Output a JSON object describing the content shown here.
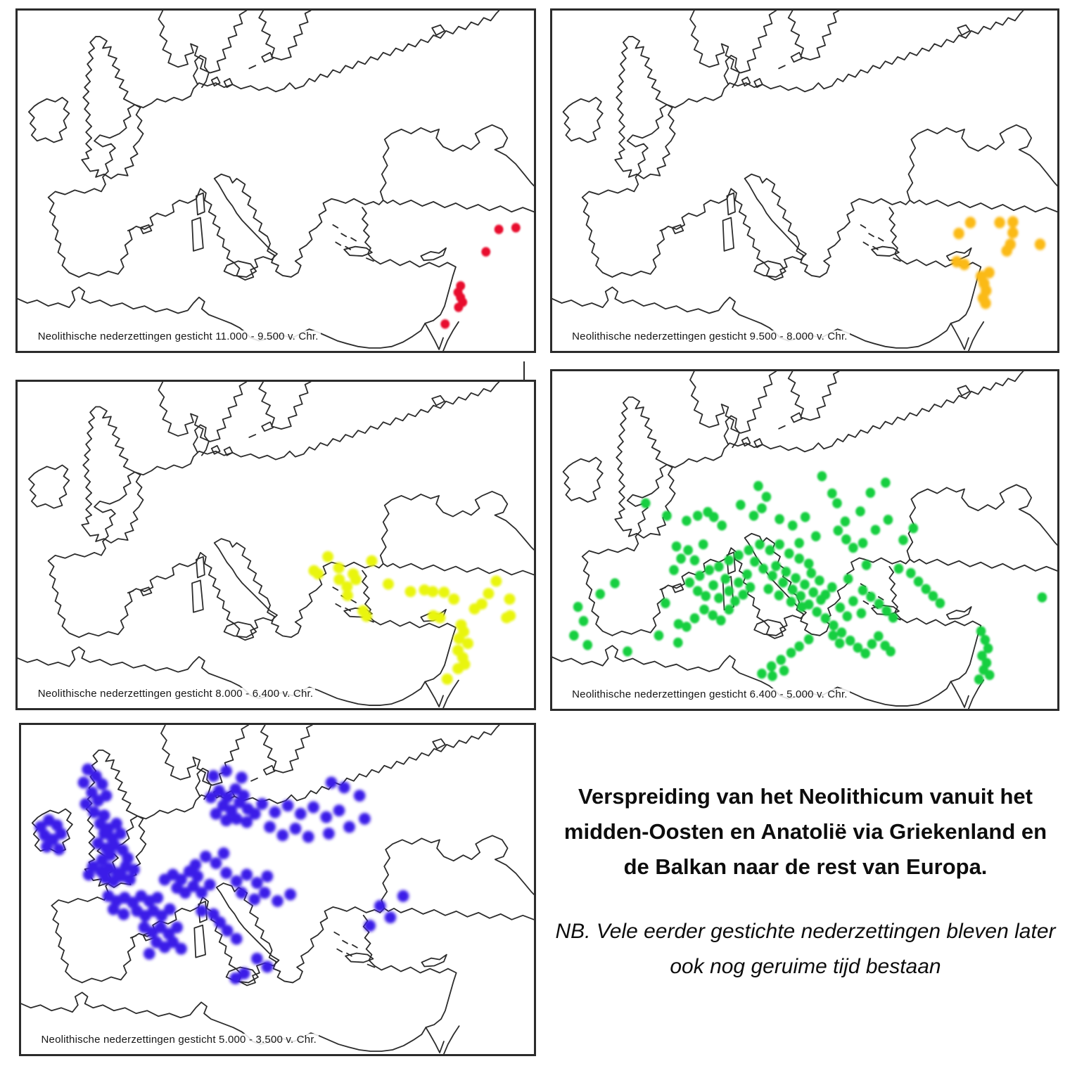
{
  "figure": {
    "title": "Verspreiding van het Neolithicum vanuit het midden-Oosten en Anatolië via Griekenland en de Balkan naar de rest van Europa.",
    "note": "NB. Vele eerder gestichte nederzettingen bleven later ook nog geruime tijd bestaan"
  },
  "outline_color": "#2b2b2b",
  "maps": [
    {
      "period": "11.000 - 9.500 v. Chr.",
      "caption": "Neolithische nederzettingen gesticht 11.000 - 9.500 v. Chr.",
      "dot_color": "#e8112d",
      "dot_radius": 6.5,
      "dot_blur": 1.2,
      "dots": [
        [
          93.2,
          64.3
        ],
        [
          96.5,
          63.8
        ],
        [
          90.7,
          70.9
        ],
        [
          85.8,
          80.9
        ],
        [
          85.3,
          82.8
        ],
        [
          85.8,
          84.3
        ],
        [
          86.2,
          85.7
        ],
        [
          85.4,
          87.2
        ],
        [
          82.8,
          92.1
        ]
      ]
    },
    {
      "period": "9.500 - 8.000 v. Chr.",
      "caption": "Neolithische nederzettingen gesticht 9.500 - 8.000 v. Chr.",
      "dot_color": "#fbba16",
      "dot_radius": 8,
      "dot_blur": 1.7,
      "dots": [
        [
          82.8,
          62.3
        ],
        [
          80.5,
          65.5
        ],
        [
          88.6,
          62.3
        ],
        [
          91.2,
          62.1
        ],
        [
          91.2,
          65.3
        ],
        [
          90.7,
          68.7
        ],
        [
          90.0,
          70.6
        ],
        [
          96.6,
          68.7
        ],
        [
          80.1,
          73.8
        ],
        [
          81.6,
          74.6
        ],
        [
          84.9,
          78.1
        ],
        [
          86.5,
          77.0
        ],
        [
          85.5,
          80.2
        ],
        [
          85.9,
          82.3
        ],
        [
          85.3,
          84.5
        ],
        [
          85.8,
          86.0
        ]
      ]
    },
    {
      "period": "8.000 - 6.400 v. Chr.",
      "caption": "Neolithische nederzettingen gesticht 8.000 - 6.400 v. Chr.",
      "dot_color": "#e9f50a",
      "dot_radius": 8,
      "dot_blur": 1.7,
      "dots": [
        [
          60.1,
          53.6
        ],
        [
          62.2,
          57.0
        ],
        [
          57.4,
          57.9
        ],
        [
          58.2,
          58.9
        ],
        [
          65.0,
          58.9
        ],
        [
          62.3,
          60.6
        ],
        [
          65.5,
          60.6
        ],
        [
          63.8,
          62.8
        ],
        [
          63.9,
          65.5
        ],
        [
          68.6,
          54.9
        ],
        [
          66.9,
          70.2
        ],
        [
          67.6,
          71.9
        ],
        [
          71.8,
          62.0
        ],
        [
          76.1,
          64.3
        ],
        [
          78.8,
          63.8
        ],
        [
          80.4,
          64.3
        ],
        [
          82.6,
          64.5
        ],
        [
          84.5,
          66.6
        ],
        [
          92.7,
          61.1
        ],
        [
          91.2,
          64.9
        ],
        [
          89.9,
          68.1
        ],
        [
          88.5,
          69.6
        ],
        [
          95.3,
          66.6
        ],
        [
          95.4,
          71.7
        ],
        [
          94.7,
          72.3
        ],
        [
          80.5,
          71.7
        ],
        [
          81.8,
          72.3
        ],
        [
          85.9,
          74.5
        ],
        [
          86.4,
          76.6
        ],
        [
          85.5,
          78.7
        ],
        [
          87.2,
          80.2
        ],
        [
          85.3,
          82.3
        ],
        [
          86.2,
          84.5
        ],
        [
          86.6,
          86.6
        ],
        [
          85.3,
          87.9
        ],
        [
          83.2,
          91.1
        ]
      ]
    },
    {
      "period": "6.400 - 5.000 v. Chr.",
      "caption": "Neolithische nederzettingen gesticht 6.400 - 5.000 v. Chr.",
      "dot_color": "#16cf3f",
      "dot_radius": 7,
      "dot_blur": 1.4,
      "dots": [
        [
          53.4,
          31.1
        ],
        [
          55.4,
          36.2
        ],
        [
          56.4,
          39.1
        ],
        [
          40.8,
          34.0
        ],
        [
          42.4,
          37.2
        ],
        [
          41.5,
          40.6
        ],
        [
          37.3,
          39.6
        ],
        [
          39.9,
          42.8
        ],
        [
          45.0,
          43.8
        ],
        [
          47.6,
          45.7
        ],
        [
          50.1,
          43.2
        ],
        [
          52.2,
          48.9
        ],
        [
          48.9,
          50.9
        ],
        [
          56.6,
          47.2
        ],
        [
          58.2,
          49.8
        ],
        [
          59.6,
          52.3
        ],
        [
          61.5,
          50.9
        ],
        [
          62.2,
          57.4
        ],
        [
          68.6,
          58.5
        ],
        [
          58.6,
          61.5
        ],
        [
          55.4,
          64.0
        ],
        [
          54.1,
          66.2
        ],
        [
          59.6,
          68.1
        ],
        [
          61.2,
          71.7
        ],
        [
          18.5,
          39.1
        ],
        [
          22.7,
          42.8
        ],
        [
          26.6,
          44.3
        ],
        [
          28.8,
          42.8
        ],
        [
          30.8,
          41.7
        ],
        [
          32.0,
          43.2
        ],
        [
          33.6,
          45.7
        ],
        [
          24.6,
          51.9
        ],
        [
          26.9,
          53.0
        ],
        [
          29.9,
          51.3
        ],
        [
          28.2,
          56.0
        ],
        [
          25.5,
          55.5
        ],
        [
          24.1,
          58.9
        ],
        [
          22.4,
          68.7
        ],
        [
          25.0,
          74.9
        ],
        [
          26.6,
          75.7
        ],
        [
          28.2,
          73.2
        ],
        [
          30.1,
          70.6
        ],
        [
          31.8,
          72.3
        ],
        [
          33.4,
          73.8
        ],
        [
          35.0,
          70.6
        ],
        [
          36.2,
          68.1
        ],
        [
          37.8,
          66.2
        ],
        [
          39.2,
          64.0
        ],
        [
          36.9,
          62.6
        ],
        [
          35.0,
          65.1
        ],
        [
          33.0,
          67.2
        ],
        [
          30.4,
          66.6
        ],
        [
          28.8,
          65.1
        ],
        [
          27.2,
          62.6
        ],
        [
          29.2,
          60.6
        ],
        [
          31.1,
          58.9
        ],
        [
          33.0,
          57.9
        ],
        [
          35.0,
          56.0
        ],
        [
          36.9,
          54.5
        ],
        [
          38.9,
          53.0
        ],
        [
          41.1,
          51.3
        ],
        [
          43.1,
          53.0
        ],
        [
          45.0,
          51.3
        ],
        [
          46.9,
          54.0
        ],
        [
          48.9,
          55.5
        ],
        [
          50.8,
          57.0
        ],
        [
          40.1,
          56.4
        ],
        [
          41.8,
          58.5
        ],
        [
          43.6,
          60.6
        ],
        [
          45.7,
          62.6
        ],
        [
          47.6,
          64.7
        ],
        [
          49.2,
          66.6
        ],
        [
          50.8,
          69.1
        ],
        [
          52.4,
          71.3
        ],
        [
          54.1,
          73.2
        ],
        [
          55.7,
          75.3
        ],
        [
          57.3,
          77.4
        ],
        [
          50.8,
          79.4
        ],
        [
          48.9,
          81.5
        ],
        [
          47.3,
          83.4
        ],
        [
          45.3,
          85.5
        ],
        [
          43.4,
          87.4
        ],
        [
          41.5,
          89.6
        ],
        [
          43.6,
          90.3
        ],
        [
          45.9,
          88.7
        ],
        [
          59.0,
          79.8
        ],
        [
          60.5,
          81.9
        ],
        [
          62.0,
          83.6
        ],
        [
          63.3,
          80.8
        ],
        [
          64.6,
          78.5
        ],
        [
          65.9,
          81.3
        ],
        [
          67.0,
          83.0
        ],
        [
          61.5,
          64.9
        ],
        [
          63.1,
          66.8
        ],
        [
          64.7,
          68.9
        ],
        [
          66.2,
          71.0
        ],
        [
          67.5,
          73.0
        ],
        [
          57.0,
          70.0
        ],
        [
          58.4,
          72.6
        ],
        [
          55.6,
          78.3
        ],
        [
          56.9,
          80.6
        ],
        [
          52.9,
          62.0
        ],
        [
          51.3,
          59.8
        ],
        [
          44.3,
          57.7
        ],
        [
          46.3,
          59.4
        ],
        [
          48.2,
          61.3
        ],
        [
          50.0,
          63.2
        ],
        [
          51.7,
          65.5
        ],
        [
          53.2,
          67.7
        ],
        [
          49.4,
          69.8
        ],
        [
          47.3,
          68.3
        ],
        [
          44.9,
          66.4
        ],
        [
          42.8,
          64.5
        ],
        [
          38.6,
          60.2
        ],
        [
          34.3,
          61.5
        ],
        [
          31.9,
          63.4
        ],
        [
          5.1,
          69.8
        ],
        [
          6.2,
          74.0
        ],
        [
          4.3,
          78.3
        ],
        [
          7.0,
          81.1
        ],
        [
          14.9,
          83.0
        ],
        [
          21.1,
          78.3
        ],
        [
          24.9,
          80.4
        ],
        [
          12.4,
          62.8
        ],
        [
          9.5,
          66.0
        ],
        [
          84.9,
          77.0
        ],
        [
          85.7,
          79.6
        ],
        [
          86.3,
          82.1
        ],
        [
          85.1,
          84.3
        ],
        [
          86.0,
          86.4
        ],
        [
          85.4,
          88.5
        ],
        [
          86.6,
          90.0
        ],
        [
          84.5,
          91.3
        ],
        [
          97.0,
          67.0
        ],
        [
          71.0,
          59.8
        ],
        [
          72.5,
          62.3
        ],
        [
          74.0,
          64.5
        ],
        [
          75.4,
          66.6
        ],
        [
          76.8,
          68.7
        ],
        [
          64.0,
          47.0
        ],
        [
          66.5,
          44.0
        ],
        [
          61.0,
          41.5
        ],
        [
          58.0,
          44.5
        ],
        [
          63.0,
          36.0
        ],
        [
          66.0,
          33.0
        ],
        [
          69.5,
          50.0
        ],
        [
          71.5,
          46.5
        ]
      ]
    },
    {
      "period": "5.000 - 3.500 v. Chr.",
      "caption": "Neolithische nederzettingen gesticht 5.000 - 3.500 v. Chr.",
      "dot_color": "#3b1de8",
      "dot_radius": 8.5,
      "dot_blur": 2.2,
      "dots": [
        [
          3.8,
          31.0
        ],
        [
          5.4,
          29.0
        ],
        [
          7.0,
          30.5
        ],
        [
          4.6,
          33.5
        ],
        [
          6.2,
          34.8
        ],
        [
          7.8,
          33.0
        ],
        [
          5.0,
          37.0
        ],
        [
          7.4,
          37.8
        ],
        [
          13.0,
          13.5
        ],
        [
          14.6,
          15.5
        ],
        [
          12.2,
          17.5
        ],
        [
          15.8,
          18.0
        ],
        [
          13.8,
          20.5
        ],
        [
          15.0,
          23.0
        ],
        [
          12.6,
          24.0
        ],
        [
          16.6,
          21.5
        ],
        [
          14.2,
          26.5
        ],
        [
          16.2,
          27.5
        ],
        [
          15.4,
          30.0
        ],
        [
          17.0,
          31.5
        ],
        [
          18.6,
          30.0
        ],
        [
          16.2,
          33.0
        ],
        [
          17.8,
          34.5
        ],
        [
          19.4,
          33.0
        ],
        [
          15.0,
          36.0
        ],
        [
          16.6,
          37.5
        ],
        [
          18.2,
          36.5
        ],
        [
          19.8,
          38.0
        ],
        [
          17.4,
          39.5
        ],
        [
          15.8,
          41.0
        ],
        [
          14.0,
          43.0
        ],
        [
          15.6,
          44.5
        ],
        [
          17.2,
          43.5
        ],
        [
          18.8,
          45.0
        ],
        [
          20.4,
          43.0
        ],
        [
          16.4,
          46.5
        ],
        [
          18.0,
          47.5
        ],
        [
          19.6,
          46.0
        ],
        [
          21.2,
          47.0
        ],
        [
          13.2,
          45.5
        ],
        [
          20.8,
          40.5
        ],
        [
          22.0,
          44.0
        ],
        [
          17.0,
          52.0
        ],
        [
          18.6,
          53.5
        ],
        [
          20.2,
          52.5
        ],
        [
          21.8,
          54.0
        ],
        [
          23.4,
          52.0
        ],
        [
          25.0,
          53.5
        ],
        [
          26.6,
          52.5
        ],
        [
          22.6,
          56.5
        ],
        [
          24.2,
          58.0
        ],
        [
          25.8,
          56.5
        ],
        [
          27.4,
          58.0
        ],
        [
          29.0,
          56.0
        ],
        [
          20.0,
          57.5
        ],
        [
          18.0,
          56.0
        ],
        [
          24.0,
          61.5
        ],
        [
          25.6,
          63.0
        ],
        [
          27.2,
          61.5
        ],
        [
          28.8,
          63.5
        ],
        [
          30.4,
          61.5
        ],
        [
          26.4,
          66.0
        ],
        [
          28.0,
          67.5
        ],
        [
          29.6,
          66.0
        ],
        [
          31.2,
          68.0
        ],
        [
          25.0,
          69.5
        ],
        [
          28.0,
          47.0
        ],
        [
          29.6,
          45.5
        ],
        [
          31.2,
          47.0
        ],
        [
          32.8,
          44.5
        ],
        [
          34.4,
          46.0
        ],
        [
          30.4,
          49.5
        ],
        [
          32.0,
          51.0
        ],
        [
          33.6,
          49.0
        ],
        [
          35.2,
          51.0
        ],
        [
          36.8,
          48.5
        ],
        [
          34.0,
          42.5
        ],
        [
          36.0,
          40.0
        ],
        [
          38.0,
          42.0
        ],
        [
          39.5,
          39.0
        ],
        [
          37.0,
          22.0
        ],
        [
          38.6,
          20.0
        ],
        [
          40.2,
          22.0
        ],
        [
          41.8,
          19.5
        ],
        [
          43.4,
          21.5
        ],
        [
          39.4,
          24.5
        ],
        [
          41.0,
          26.0
        ],
        [
          42.6,
          23.5
        ],
        [
          44.2,
          25.5
        ],
        [
          38.0,
          27.0
        ],
        [
          40.0,
          29.0
        ],
        [
          42.0,
          28.5
        ],
        [
          44.0,
          29.5
        ],
        [
          45.6,
          27.0
        ],
        [
          37.5,
          15.5
        ],
        [
          40.0,
          14.0
        ],
        [
          43.0,
          16.0
        ],
        [
          47.0,
          24.0
        ],
        [
          49.5,
          26.5
        ],
        [
          52.0,
          24.5
        ],
        [
          54.5,
          27.0
        ],
        [
          57.0,
          25.0
        ],
        [
          59.5,
          28.0
        ],
        [
          62.0,
          26.0
        ],
        [
          48.5,
          31.0
        ],
        [
          51.0,
          33.5
        ],
        [
          53.5,
          31.5
        ],
        [
          56.0,
          34.0
        ],
        [
          60.0,
          33.0
        ],
        [
          64.0,
          31.0
        ],
        [
          67.0,
          28.5
        ],
        [
          63.0,
          19.0
        ],
        [
          66.0,
          21.5
        ],
        [
          60.5,
          17.5
        ],
        [
          40.0,
          45.0
        ],
        [
          42.0,
          47.5
        ],
        [
          44.0,
          45.5
        ],
        [
          46.0,
          48.0
        ],
        [
          48.0,
          46.0
        ],
        [
          43.0,
          51.0
        ],
        [
          45.5,
          53.0
        ],
        [
          47.5,
          51.0
        ],
        [
          50.0,
          53.5
        ],
        [
          52.5,
          51.5
        ],
        [
          37.5,
          57.5
        ],
        [
          38.8,
          60.0
        ],
        [
          40.2,
          62.5
        ],
        [
          42.0,
          65.0
        ],
        [
          46.0,
          71.0
        ],
        [
          48.0,
          73.5
        ],
        [
          43.5,
          75.5
        ],
        [
          41.8,
          77.0
        ],
        [
          35.2,
          56.5
        ],
        [
          70.0,
          55.0
        ],
        [
          72.0,
          58.5
        ],
        [
          74.5,
          52.0
        ],
        [
          68.0,
          61.0
        ]
      ]
    }
  ]
}
